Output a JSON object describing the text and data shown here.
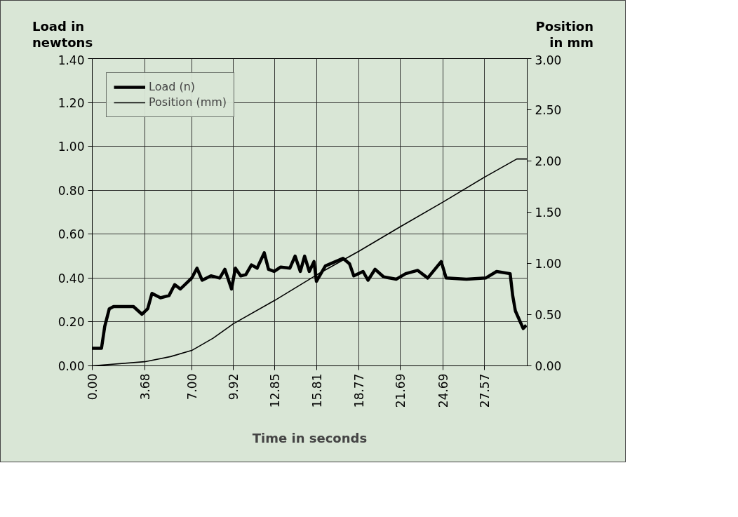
{
  "chart_data": {
    "type": "line",
    "xlabel": "Time in seconds",
    "ylabel": "Load in newtons",
    "y2label": "Position in mm",
    "xlim": [
      0,
      30.6
    ],
    "xticks": [
      {
        "value": 0,
        "label": "0.00"
      },
      3.68,
      {
        "value": 7,
        "label": "7.00"
      },
      9.92,
      12.85,
      15.81,
      18.77,
      21.69,
      24.69,
      27.57
    ],
    "ylim": [
      0,
      1.4
    ],
    "yticks": [
      {
        "value": 0,
        "label": "0.00"
      },
      {
        "value": 0.2,
        "label": "0.20"
      },
      {
        "value": 0.4,
        "label": "0.40"
      },
      {
        "value": 0.6,
        "label": "0.60"
      },
      {
        "value": 0.8,
        "label": "0.80"
      },
      {
        "value": 1,
        "label": "1.00"
      },
      {
        "value": 1.2,
        "label": "1.20"
      },
      {
        "value": 1.4,
        "label": "1.40"
      }
    ],
    "y2lim": [
      0,
      3
    ],
    "y2ticks": [
      {
        "value": 0,
        "label": "0.00"
      },
      {
        "value": 0.5,
        "label": "0.50"
      },
      {
        "value": 1,
        "label": "1.00"
      },
      {
        "value": 1.5,
        "label": "1.50"
      },
      {
        "value": 2,
        "label": "2.00"
      },
      {
        "value": 2.5,
        "label": "2.50"
      },
      {
        "value": 3,
        "label": "3.00"
      }
    ],
    "grid": true,
    "legend": "top left",
    "marker": "none",
    "line_style": "solid",
    "series": [
      {
        "name": "Load (n)",
        "color": "#000000",
        "x": [
          0,
          0.65,
          0.88,
          1.2,
          1.5,
          2.1,
          2.9,
          3.5,
          3.9,
          4.2,
          4.8,
          5.4,
          5.8,
          6.2,
          7.0,
          7.37,
          7.73,
          8.35,
          8.97,
          9.33,
          9.8,
          10.07,
          10.44,
          10.8,
          11.2,
          11.6,
          12.1,
          12.4,
          12.8,
          13.26,
          13.9,
          14.27,
          14.64,
          14.94,
          15.27,
          15.6,
          15.77,
          16.4,
          17.64,
          18.1,
          18.4,
          19.05,
          19.4,
          19.9,
          20.5,
          21.4,
          22.05,
          22.9,
          23.6,
          24.55,
          24.9,
          26.33,
          27.68,
          28.45,
          29.4,
          29.58,
          29.77,
          30.32,
          30.53
        ],
        "values": [
          0.08,
          0.08,
          0.18,
          0.26,
          0.27,
          0.27,
          0.27,
          0.235,
          0.26,
          0.33,
          0.31,
          0.32,
          0.37,
          0.35,
          0.4,
          0.445,
          0.39,
          0.41,
          0.4,
          0.44,
          0.35,
          0.445,
          0.41,
          0.415,
          0.46,
          0.445,
          0.515,
          0.44,
          0.43,
          0.45,
          0.445,
          0.5,
          0.43,
          0.5,
          0.43,
          0.475,
          0.385,
          0.455,
          0.49,
          0.465,
          0.41,
          0.43,
          0.39,
          0.44,
          0.405,
          0.395,
          0.42,
          0.435,
          0.4,
          0.475,
          0.4,
          0.395,
          0.4,
          0.43,
          0.42,
          0.32,
          0.25,
          0.17,
          0.185
        ]
      },
      {
        "name": "Position (mm)",
        "color": "#000000",
        "axis": "y2",
        "x": [
          0,
          3.68,
          5.5,
          7.0,
          8.5,
          9.92,
          12.85,
          15.81,
          18.77,
          21.69,
          24.69,
          27.57,
          29.87,
          30.6
        ],
        "values": [
          0,
          0.04,
          0.09,
          0.15,
          0.27,
          0.41,
          0.64,
          0.89,
          1.12,
          1.36,
          1.6,
          1.84,
          2.02,
          2.02
        ]
      }
    ]
  }
}
